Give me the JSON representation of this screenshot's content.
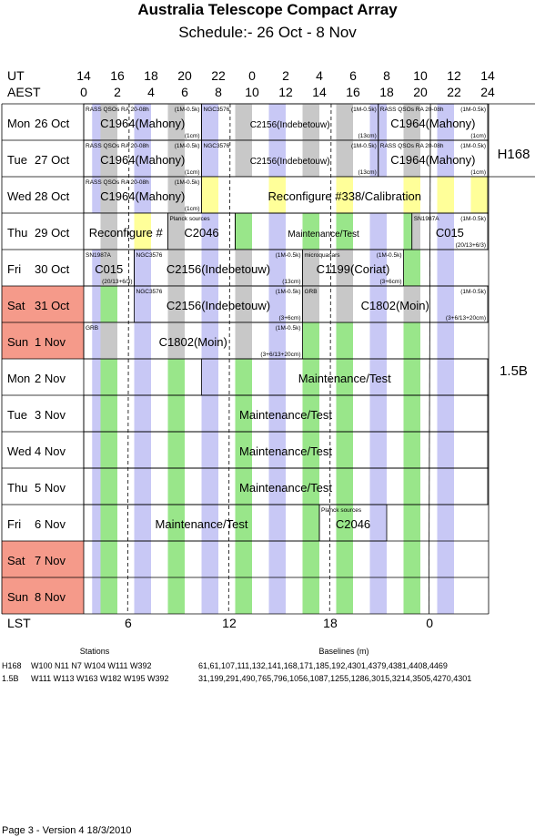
{
  "title": "Australia Telescope Compact Array",
  "subtitle": "Schedule:- 26 Oct - 8  Nov",
  "header": {
    "ut_label": "UT",
    "aest_label": "AEST",
    "ut_hours": [
      "14",
      "16",
      "18",
      "20",
      "22",
      "0",
      "2",
      "4",
      "6",
      "8",
      "10",
      "12",
      "14"
    ],
    "aest_hours": [
      "0",
      "2",
      "4",
      "6",
      "8",
      "10",
      "12",
      "14",
      "16",
      "18",
      "20",
      "22",
      "24"
    ]
  },
  "rows": [
    {
      "day": "Mon",
      "date": "26 Oct",
      "weekend": false
    },
    {
      "day": "Tue",
      "date": "27 Oct",
      "weekend": false
    },
    {
      "day": "Wed",
      "date": "28 Oct",
      "weekend": false
    },
    {
      "day": "Thu",
      "date": "29 Oct",
      "weekend": false
    },
    {
      "day": "Fri",
      "date": "30 Oct",
      "weekend": false
    },
    {
      "day": "Sat",
      "date": "31 Oct",
      "weekend": true
    },
    {
      "day": "Sun",
      "date": "1  Nov",
      "weekend": true
    },
    {
      "day": "Mon",
      "date": "2  Nov",
      "weekend": false
    },
    {
      "day": "Tue",
      "date": "3  Nov",
      "weekend": false
    },
    {
      "day": "Wed",
      "date": "4  Nov",
      "weekend": false
    },
    {
      "day": "Thu",
      "date": "5  Nov",
      "weekend": false
    },
    {
      "day": "Fri",
      "date": "6  Nov",
      "weekend": false
    },
    {
      "day": "Sat",
      "date": "7  Nov",
      "weekend": true
    },
    {
      "day": "Sun",
      "date": "8  Nov",
      "weekend": true
    }
  ],
  "configs": [
    {
      "name": "H168",
      "first_row": 0,
      "last_row": 1
    },
    {
      "name": "1.5B",
      "first_row": 2,
      "last_row": 13
    }
  ],
  "blocks": [
    {
      "row": 0,
      "start": 0,
      "end": 7,
      "label": "C1964(Mahony)",
      "tl": "RASS QSOs RA 20-08h",
      "tr": "(1M-0.5k)",
      "br": "(1cm)"
    },
    {
      "row": 0,
      "start": 7,
      "end": 17.5,
      "label": "C2156(Indebetouw)",
      "tl": "NGC3576",
      "tr": "(1M-0.5k)",
      "br": "(13cm)",
      "small": true
    },
    {
      "row": 0,
      "start": 17.5,
      "end": 24,
      "label": "C1964(Mahony)",
      "tl": "RASS QSOs RA 20-08h",
      "tr": "(1M-0.5k)",
      "br": "(1cm)"
    },
    {
      "row": 1,
      "start": 0,
      "end": 7,
      "label": "C1964(Mahony)",
      "tl": "RASS QSOs RA 20-08h",
      "tr": "(1M-0.5k)",
      "br": "(1cm)"
    },
    {
      "row": 1,
      "start": 7,
      "end": 17.5,
      "label": "C2156(Indebetouw)",
      "tl": "NGC3576",
      "tr": "(1M-0.5k)",
      "br": "(13cm)",
      "small": true
    },
    {
      "row": 1,
      "start": 17.5,
      "end": 24,
      "label": "C1964(Mahony)",
      "tl": "RASS QSOs RA 20-08h",
      "tr": "(1M-0.5k)",
      "br": "(1cm)"
    },
    {
      "row": 2,
      "start": 0,
      "end": 7,
      "label": "C1964(Mahony)",
      "tl": "RASS QSOs RA 20-08h",
      "tr": "(1M-0.5k)",
      "br": "(1cm)"
    },
    {
      "row": 2,
      "start": 7,
      "end": 24,
      "label": "Reconfigure #338/Calibration",
      "stripes": "reconfig"
    },
    {
      "row": 3,
      "start": 0,
      "end": 5,
      "label": "Reconfigure #",
      "stripes": "reconfig"
    },
    {
      "row": 3,
      "start": 5,
      "end": 9,
      "label": "C2046",
      "tl": "Planck sources"
    },
    {
      "row": 3,
      "start": 9,
      "end": 19.5,
      "label": "Maintenance/Test",
      "small": true
    },
    {
      "row": 3,
      "start": 19.5,
      "end": 24,
      "label": "C015",
      "tl": "SN1987A",
      "tr": "(1M-0.5k)",
      "br": "(20/13+6/3)"
    },
    {
      "row": 4,
      "start": 0,
      "end": 3,
      "label": "C015",
      "tl": "SN1987A",
      "br": "(20/13+6/3)"
    },
    {
      "row": 4,
      "start": 3,
      "end": 13,
      "label": "C2156(Indebetouw)",
      "tl": "NGC3576",
      "tr": "(1M-0.5k)",
      "br": "(13cm)"
    },
    {
      "row": 4,
      "start": 13,
      "end": 19,
      "label": "C1199(Coriat)",
      "tl": "microquasars",
      "tr": "(1M-0.5k)",
      "br": "(3+6cm)"
    },
    {
      "row": 5,
      "start": 3,
      "end": 13,
      "label": "C2156(Indebetouw)",
      "tl": "NGC3576",
      "tr": "(1M-0.5k)",
      "br": "(3+6cm)"
    },
    {
      "row": 5,
      "start": 13,
      "end": 24,
      "label": "C1802(Moin)",
      "tl": "GRB",
      "tr": "(1M-0.5k)",
      "br": "(3+6/13+20cm)"
    },
    {
      "row": 6,
      "start": 0,
      "end": 13,
      "label": "C1802(Moin)",
      "tl": "GRB",
      "tr": "(1M-0.5k)",
      "br": "(3+6/13+20cm)"
    },
    {
      "row": 7,
      "start": 7,
      "end": 24,
      "label": "Maintenance/Test"
    },
    {
      "row": 8,
      "start": 0,
      "end": 24,
      "label": "Maintenance/Test"
    },
    {
      "row": 9,
      "start": 0,
      "end": 24,
      "label": "Maintenance/Test"
    },
    {
      "row": 10,
      "start": 0,
      "end": 24,
      "label": "Maintenance/Test"
    },
    {
      "row": 11,
      "start": 0,
      "end": 14,
      "label": "Maintenance/Test"
    },
    {
      "row": 11,
      "start": 14,
      "end": 18,
      "label": "C2046",
      "tl": "Planck sources"
    }
  ],
  "lst": {
    "label": "LST",
    "ticks": [
      {
        "value": "6",
        "aest": 2.7
      },
      {
        "value": "12",
        "aest": 8.7
      },
      {
        "value": "18",
        "aest": 14.7
      },
      {
        "value": "0",
        "aest": 20.6
      }
    ]
  },
  "stations": {
    "heading_stations": "Stations",
    "heading_baselines": "Baselines (m)",
    "rows": [
      {
        "config": "H168",
        "stations": "W100  N11  N7  W104  W111  W392",
        "baselines": "61,61,107,111,132,141,168,171,185,192,4301,4379,4381,4408,4469"
      },
      {
        "config": "1.5B",
        "stations": "W111  W113  W163  W182  W195  W392",
        "baselines": "31,199,291,490,765,796,1056,1087,1255,1286,3015,3214,3505,4270,4301"
      }
    ]
  },
  "footer": "Page 3 - Version 4  18/3/2010",
  "colors": {
    "green": "#99e68a",
    "blue": "#c8c8f5",
    "grey": "#c8c8c8",
    "yellow": "#ffff99",
    "weekend": "#f59a8a"
  }
}
